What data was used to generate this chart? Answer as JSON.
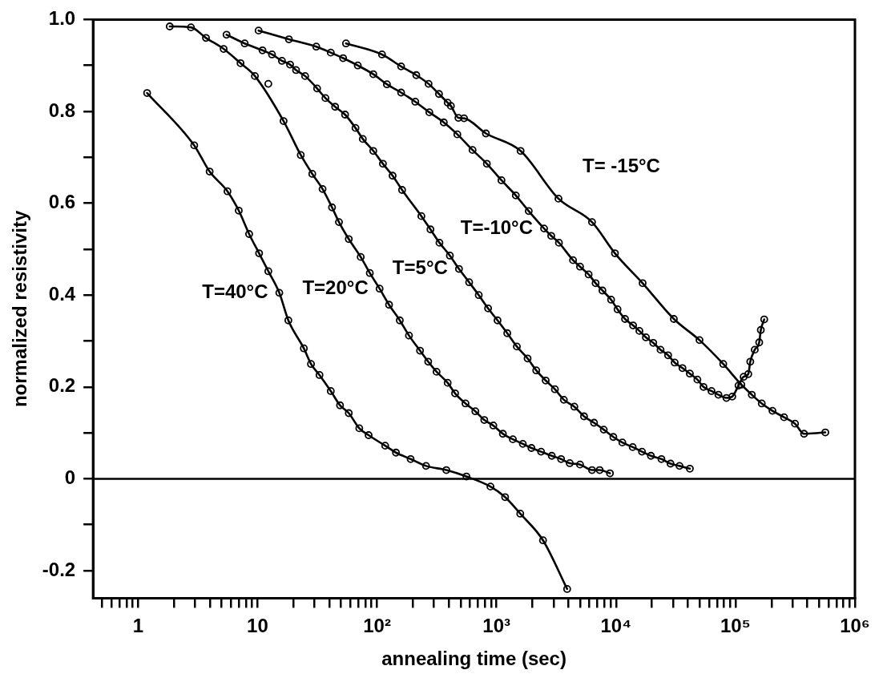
{
  "chart_data": {
    "type": "line",
    "xlabel": "annealing time (sec)",
    "ylabel": "normalized resistivity",
    "log": "x",
    "marker": "circle",
    "line_style": "solid",
    "grid": false,
    "xlim": [
      0.42,
      1000000
    ],
    "xticks": [
      {
        "value": 0.5,
        "label": null
      },
      {
        "value": 0.6,
        "label": null
      },
      {
        "value": 0.7,
        "label": null
      },
      {
        "value": 0.8,
        "label": null
      },
      {
        "value": 0.9,
        "label": null
      },
      1,
      {
        "value": 2,
        "label": null
      },
      {
        "value": 3,
        "label": null
      },
      {
        "value": 4,
        "label": null
      },
      {
        "value": 5,
        "label": null
      },
      {
        "value": 6,
        "label": null
      },
      {
        "value": 7,
        "label": null
      },
      {
        "value": 8,
        "label": null
      },
      {
        "value": 9,
        "label": null
      },
      10,
      {
        "value": 20,
        "label": null
      },
      {
        "value": 30,
        "label": null
      },
      {
        "value": 40,
        "label": null
      },
      {
        "value": 50,
        "label": null
      },
      {
        "value": 60,
        "label": null
      },
      {
        "value": 70,
        "label": null
      },
      {
        "value": 80,
        "label": null
      },
      {
        "value": 90,
        "label": null
      },
      {
        "value": 100,
        "label": "10²"
      },
      {
        "value": 200,
        "label": null
      },
      {
        "value": 300,
        "label": null
      },
      {
        "value": 400,
        "label": null
      },
      {
        "value": 500,
        "label": null
      },
      {
        "value": 600,
        "label": null
      },
      {
        "value": 700,
        "label": null
      },
      {
        "value": 800,
        "label": null
      },
      {
        "value": 900,
        "label": null
      },
      {
        "value": 1000,
        "label": "10³"
      },
      {
        "value": 2000,
        "label": null
      },
      {
        "value": 3000,
        "label": null
      },
      {
        "value": 4000,
        "label": null
      },
      {
        "value": 5000,
        "label": null
      },
      {
        "value": 6000,
        "label": null
      },
      {
        "value": 7000,
        "label": null
      },
      {
        "value": 8000,
        "label": null
      },
      {
        "value": 9000,
        "label": null
      },
      {
        "value": 10000,
        "label": "10⁴"
      },
      {
        "value": 20000,
        "label": null
      },
      {
        "value": 30000,
        "label": null
      },
      {
        "value": 40000,
        "label": null
      },
      {
        "value": 50000,
        "label": null
      },
      {
        "value": 60000,
        "label": null
      },
      {
        "value": 70000,
        "label": null
      },
      {
        "value": 80000,
        "label": null
      },
      {
        "value": 90000,
        "label": null
      },
      {
        "value": 100000,
        "label": "10⁵"
      },
      {
        "value": 200000,
        "label": null
      },
      {
        "value": 300000,
        "label": null
      },
      {
        "value": 400000,
        "label": null
      },
      {
        "value": 500000,
        "label": null
      },
      {
        "value": 600000,
        "label": null
      },
      {
        "value": 700000,
        "label": null
      },
      {
        "value": 800000,
        "label": null
      },
      {
        "value": 900000,
        "label": null
      },
      {
        "value": 1000000,
        "label": "10⁶"
      }
    ],
    "ylim": [
      -0.26,
      1.0
    ],
    "yticks": [
      -0.2,
      {
        "value": -0.1,
        "label": null
      },
      0,
      {
        "value": 0.1,
        "label": null
      },
      0.2,
      {
        "value": 0.3,
        "label": null
      },
      0.4,
      {
        "value": 0.5,
        "label": null
      },
      0.6,
      {
        "value": 0.7,
        "label": null
      },
      0.8,
      {
        "value": 0.9,
        "label": null
      },
      {
        "value": 1,
        "label": "1.0"
      }
    ],
    "ref_lines": [
      {
        "axis": "y",
        "value": 0,
        "color": "#000000",
        "line_style": "solid"
      }
    ],
    "annotations": [
      {
        "text": "T=40°C",
        "x": 15.2,
        "y": 0.405
      },
      {
        "text": "T=20°C",
        "x": 105,
        "y": 0.414
      },
      {
        "text": "T=5°C",
        "x": 485,
        "y": 0.457
      },
      {
        "text": "T=-10°C",
        "x": 2500,
        "y": 0.545
      },
      {
        "text": "T= -15°C",
        "x": 3300,
        "y": 0.61
      }
    ],
    "series": [
      {
        "color": "#000000",
        "x": [
          1.19,
          2.95,
          3.97,
          5.6,
          6.96,
          8.5,
          10.3,
          12.3,
          15.2,
          18.1,
          24.4,
          28,
          33,
          41,
          49,
          58,
          71,
          85,
          117,
          144,
          191,
          257,
          380,
          560,
          890,
          1180,
          1580,
          2450,
          3900
        ],
        "values": [
          0.84,
          0.726,
          0.669,
          0.626,
          0.584,
          0.533,
          0.491,
          0.452,
          0.405,
          0.345,
          0.284,
          0.25,
          0.226,
          0.191,
          0.16,
          0.143,
          0.11,
          0.095,
          0.072,
          0.057,
          0.043,
          0.028,
          0.019,
          0.005,
          -0.017,
          -0.04,
          -0.076,
          -0.134,
          -0.24
        ]
      },
      {
        "color": "#000000",
        "x": [
          1.84,
          2.77,
          3.7,
          5.2,
          7.2,
          9.5,
          16.5,
          23,
          28.7,
          35,
          42,
          48,
          58,
          73,
          87,
          105,
          126,
          155,
          185,
          229,
          268,
          315,
          390,
          450,
          550,
          665,
          790,
          940,
          1130,
          1370,
          1660,
          1960,
          2360,
          2900,
          3470,
          4100,
          5000,
          6300,
          7300,
          8900
        ],
        "values": [
          0.985,
          0.983,
          0.96,
          0.936,
          0.905,
          0.877,
          0.779,
          0.705,
          0.664,
          0.631,
          0.591,
          0.559,
          0.522,
          0.483,
          0.448,
          0.414,
          0.379,
          0.345,
          0.312,
          0.279,
          0.255,
          0.233,
          0.209,
          0.186,
          0.164,
          0.147,
          0.128,
          0.116,
          0.098,
          0.086,
          0.076,
          0.067,
          0.059,
          0.05,
          0.043,
          0.034,
          0.031,
          0.019,
          0.019,
          0.012
        ]
      },
      {
        "color": "#000000",
        "x": [
          5.5,
          7.8,
          11,
          13.2,
          16,
          18.7,
          21,
          25,
          31.5,
          37,
          44.6,
          54,
          66,
          76,
          93,
          112,
          135,
          162,
          235,
          280,
          333,
          407,
          485,
          590,
          710,
          850,
          1020,
          1230,
          1480,
          1820,
          2150,
          2580,
          3080,
          3660,
          4480,
          5400,
          6550,
          7900,
          9500,
          11300,
          13800,
          16500,
          19600,
          24000,
          28600,
          34000,
          41500
        ],
        "values": [
          0.967,
          0.948,
          0.933,
          0.924,
          0.91,
          0.902,
          0.89,
          0.877,
          0.85,
          0.829,
          0.81,
          0.793,
          0.764,
          0.74,
          0.714,
          0.686,
          0.66,
          0.629,
          0.572,
          0.543,
          0.514,
          0.486,
          0.457,
          0.428,
          0.4,
          0.371,
          0.345,
          0.317,
          0.288,
          0.262,
          0.236,
          0.214,
          0.195,
          0.172,
          0.157,
          0.136,
          0.122,
          0.107,
          0.091,
          0.079,
          0.069,
          0.059,
          0.05,
          0.043,
          0.033,
          0.028,
          0.022
        ]
      },
      {
        "color": "#000000",
        "x": [
          10.2,
          18.3,
          31,
          41,
          52,
          69,
          93,
          121,
          159,
          209,
          274,
          362,
          470,
          630,
          830,
          1100,
          1450,
          1860,
          2500,
          2870,
          3330,
          4370,
          5000,
          5900,
          6750,
          7700,
          9100,
          10300,
          11900,
          13900,
          15700,
          17800,
          20500,
          23600,
          27300,
          31000,
          36000,
          41500,
          48000,
          54000,
          63000,
          72000,
          84000,
          94000,
          106000,
          117000,
          128000,
          133000,
          145000,
          158000,
          163000,
          174000
        ],
        "values": [
          0.976,
          0.957,
          0.941,
          0.928,
          0.916,
          0.9,
          0.881,
          0.859,
          0.841,
          0.821,
          0.798,
          0.776,
          0.75,
          0.716,
          0.686,
          0.65,
          0.617,
          0.583,
          0.545,
          0.529,
          0.514,
          0.476,
          0.462,
          0.445,
          0.426,
          0.41,
          0.39,
          0.369,
          0.348,
          0.334,
          0.322,
          0.308,
          0.296,
          0.281,
          0.269,
          0.253,
          0.241,
          0.229,
          0.216,
          0.2,
          0.191,
          0.183,
          0.176,
          0.179,
          0.203,
          0.222,
          0.228,
          0.255,
          0.281,
          0.297,
          0.324,
          0.347
        ]
      },
      {
        "color": "#000000",
        "x": [
          55,
          110,
          159,
          213,
          270,
          330,
          390,
          415,
          480,
          535,
          815,
          1590,
          3300,
          6300,
          9800,
          16700,
          30500,
          50000,
          79000,
          112000,
          137000,
          166000,
          204000,
          255000,
          315000,
          375000,
          565000
        ],
        "values": [
          0.948,
          0.924,
          0.898,
          0.879,
          0.86,
          0.838,
          0.819,
          0.812,
          0.786,
          0.785,
          0.752,
          0.714,
          0.61,
          0.559,
          0.491,
          0.426,
          0.348,
          0.302,
          0.25,
          0.205,
          0.183,
          0.164,
          0.148,
          0.134,
          0.12,
          0.098,
          0.101
        ]
      },
      {
        "type": "scatter",
        "color": "#000000",
        "x": [
          12.3
        ],
        "values": [
          0.86
        ]
      }
    ]
  }
}
